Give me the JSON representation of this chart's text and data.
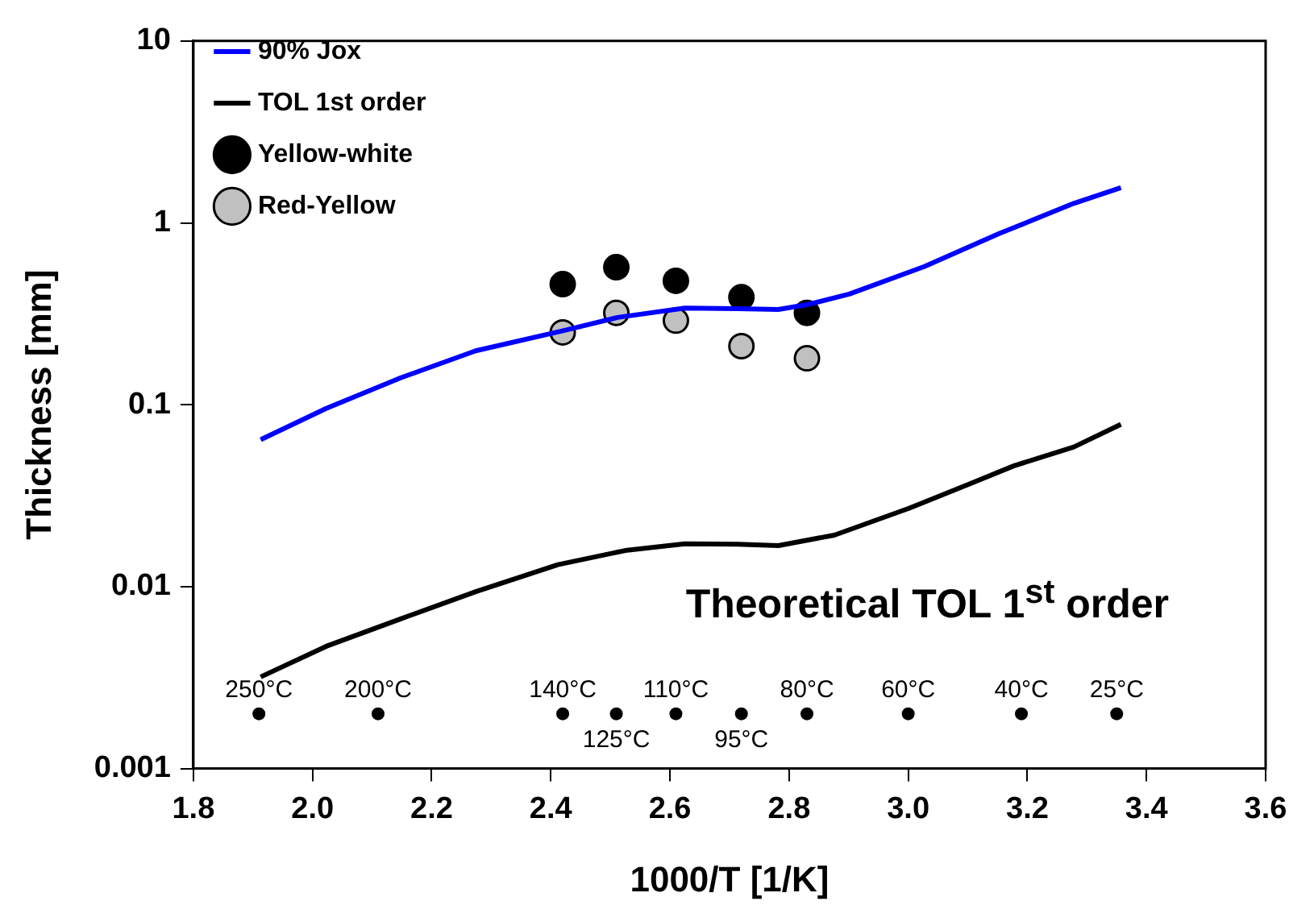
{
  "chart_data": {
    "type": "line",
    "xlabel": "1000/T [1/K]",
    "ylabel": "Thickness [mm]",
    "log": "y",
    "grid": false,
    "legend": "top left",
    "xlim": [
      1.8,
      3.6
    ],
    "xticks": [
      1.8,
      {
        "value": 2,
        "label": "2.0"
      },
      2.2,
      2.4,
      2.6,
      2.8,
      {
        "value": 3,
        "label": "3.0"
      },
      3.2,
      3.4,
      3.6
    ],
    "ylim": [
      0.001,
      10
    ],
    "yticks": [
      0.001,
      0.01,
      0.1,
      1,
      10
    ],
    "annotations": [
      "Theoretical TOL 1$^{st}$ order",
      {
        "text": "250°C",
        "x": 1.91,
        "y": 0.002
      },
      {
        "text": "200°C",
        "x": 2.11,
        "y": 0.002
      },
      {
        "text": "140°C",
        "x": 2.42,
        "y": 0.002
      },
      {
        "text": "125°C",
        "x": 2.51,
        "y": 0.002
      },
      {
        "text": "110°C",
        "x": 2.61,
        "y": 0.002
      },
      {
        "text": "95°C",
        "x": 2.72,
        "y": 0.002
      },
      {
        "text": "80°C",
        "x": 2.83,
        "y": 0.002
      },
      {
        "text": "60°C",
        "x": 3.0,
        "y": 0.002
      },
      {
        "text": "40°C",
        "x": 3.19,
        "y": 0.002
      },
      {
        "text": "25°C",
        "x": 3.35,
        "y": 0.002
      }
    ],
    "series": [
      {
        "name": "90% Jox",
        "color": "#0000ff",
        "marker": "none",
        "x": [
          1.913,
          2.023,
          2.149,
          2.274,
          2.422,
          2.512,
          2.625,
          2.713,
          2.782,
          2.832,
          2.901,
          3.027,
          3.152,
          3.278,
          3.357
        ],
        "values": [
          0.0643,
          0.0955,
          0.141,
          0.198,
          0.256,
          0.302,
          0.34,
          0.337,
          0.334,
          0.356,
          0.406,
          0.575,
          0.871,
          1.28,
          1.56
        ]
      },
      {
        "name": "TOL 1st order",
        "color": "#000000",
        "marker": "none",
        "x": [
          1.913,
          2.023,
          2.149,
          2.274,
          2.412,
          2.525,
          2.625,
          2.713,
          2.782,
          2.876,
          3.002,
          3.102,
          3.177,
          3.278,
          3.357
        ],
        "values": [
          0.00319,
          0.0047,
          0.00667,
          0.00938,
          0.0132,
          0.0158,
          0.0172,
          0.0171,
          0.0168,
          0.0192,
          0.027,
          0.0366,
          0.0461,
          0.0586,
          0.078
        ]
      },
      {
        "name": "Yellow-white",
        "type": "scatter",
        "color": "#000000",
        "marker": "circle",
        "x": [
          2.42,
          2.51,
          2.61,
          2.72,
          2.83
        ],
        "values": [
          0.46,
          0.57,
          0.48,
          0.39,
          0.32
        ]
      },
      {
        "name": "Red-Yellow",
        "type": "scatter",
        "color": "#c0c0c0",
        "marker": "circle",
        "x": [
          2.42,
          2.51,
          2.61,
          2.72,
          2.83
        ],
        "values": [
          0.25,
          0.32,
          0.29,
          0.21,
          0.18
        ]
      },
      {
        "type": "scatter",
        "color": "#000000",
        "marker": "circle",
        "x": [
          1.91,
          2.11,
          2.42,
          2.51,
          2.61,
          2.72,
          2.83,
          3.0,
          3.19,
          3.35
        ],
        "values": [
          0.002,
          0.002,
          0.002,
          0.002,
          0.002,
          0.002,
          0.002,
          0.002,
          0.002,
          0.002
        ]
      }
    ]
  }
}
